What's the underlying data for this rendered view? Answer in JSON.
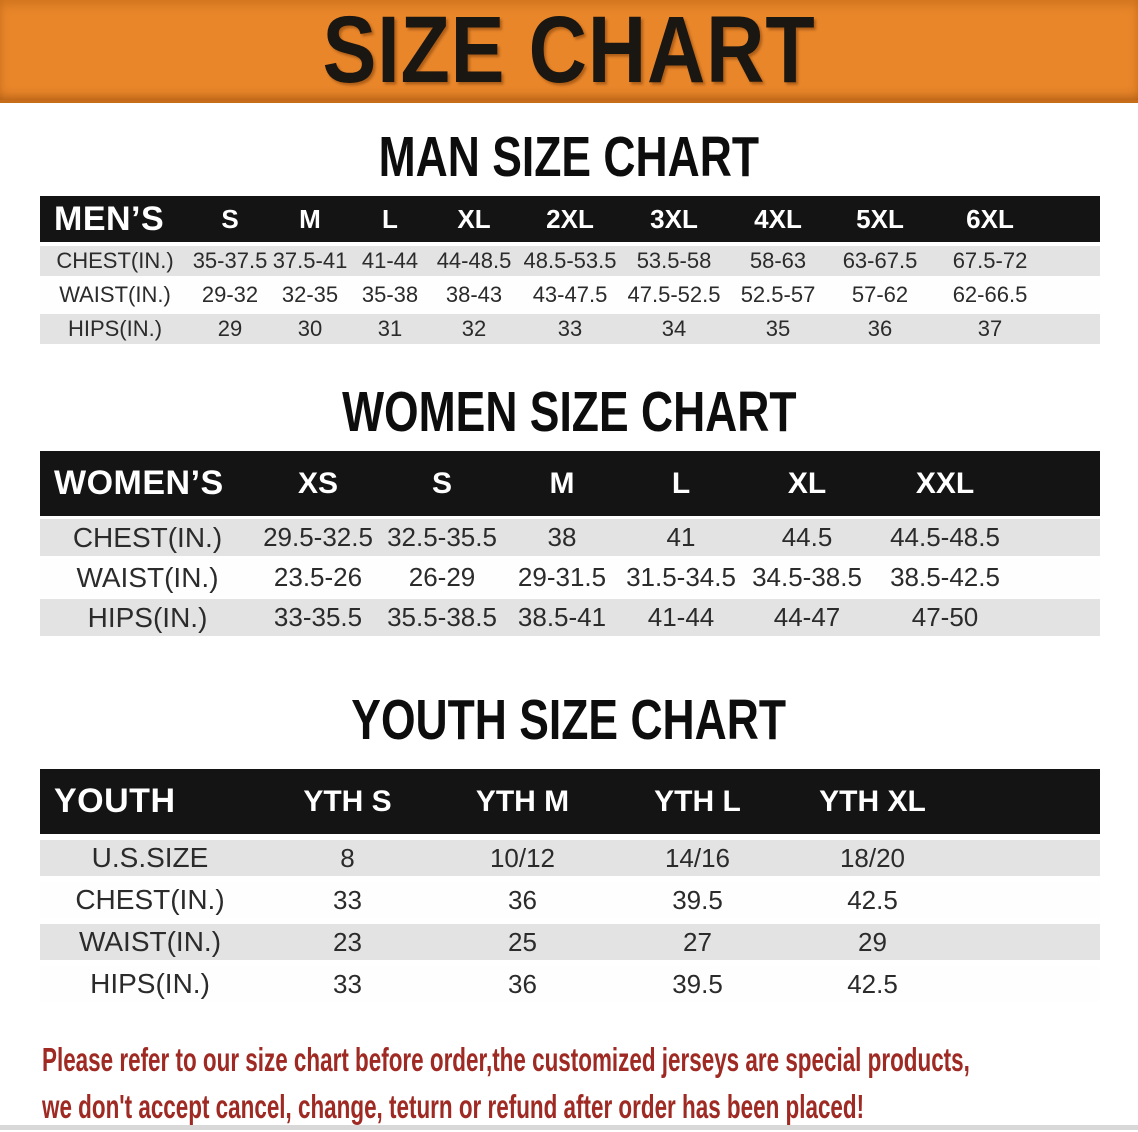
{
  "banner": {
    "title": "SIZE CHART",
    "bg_color": "#E9862A",
    "text_color": "#1A1611"
  },
  "men": {
    "heading": "MAN SIZE CHART",
    "header_label": "MEN’S",
    "sizes": [
      "S",
      "M",
      "L",
      "XL",
      "2XL",
      "3XL",
      "4XL",
      "5XL",
      "6XL"
    ],
    "rows": [
      {
        "label": "CHEST(IN.)",
        "values": [
          "35-37.5",
          "37.5-41",
          "41-44",
          "44-48.5",
          "48.5-53.5",
          "53.5-58",
          "58-63",
          "63-67.5",
          "67.5-72"
        ]
      },
      {
        "label": "WAIST(IN.)",
        "values": [
          "29-32",
          "32-35",
          "35-38",
          "38-43",
          "43-47.5",
          "47.5-52.5",
          "52.5-57",
          "57-62",
          "62-66.5"
        ]
      },
      {
        "label": "HIPS(IN.)",
        "values": [
          "29",
          "30",
          "31",
          "32",
          "33",
          "34",
          "35",
          "36",
          "37"
        ]
      }
    ]
  },
  "women": {
    "heading": "WOMEN SIZE CHART",
    "header_label": "WOMEN’S",
    "sizes": [
      "XS",
      "S",
      "M",
      "L",
      "XL",
      "XXL"
    ],
    "rows": [
      {
        "label": "CHEST(IN.)",
        "values": [
          "29.5-32.5",
          "32.5-35.5",
          "38",
          "41",
          "44.5",
          "44.5-48.5"
        ]
      },
      {
        "label": "WAIST(IN.)",
        "values": [
          "23.5-26",
          "26-29",
          "29-31.5",
          "31.5-34.5",
          "34.5-38.5",
          "38.5-42.5"
        ]
      },
      {
        "label": "HIPS(IN.)",
        "values": [
          "33-35.5",
          "35.5-38.5",
          "38.5-41",
          "41-44",
          "44-47",
          "47-50"
        ]
      }
    ]
  },
  "youth": {
    "heading": "YOUTH SIZE CHART",
    "header_label": "YOUTH",
    "sizes": [
      "YTH S",
      "YTH M",
      "YTH L",
      "YTH XL"
    ],
    "rows": [
      {
        "label": "U.S.SIZE",
        "values": [
          "8",
          "10/12",
          "14/16",
          "18/20"
        ]
      },
      {
        "label": "CHEST(IN.)",
        "values": [
          "33",
          "36",
          "39.5",
          "42.5"
        ]
      },
      {
        "label": "WAIST(IN.)",
        "values": [
          "23",
          "25",
          "27",
          "29"
        ]
      },
      {
        "label": "HIPS(IN.)",
        "values": [
          "33",
          "36",
          "39.5",
          "42.5"
        ]
      }
    ]
  },
  "footer": {
    "line1": "Please refer to our size chart before order,the customized jerseys are special products,",
    "line2": "we don't accept cancel, change, teturn or refund after order has been placed!",
    "text_color": "#9E2A23"
  },
  "colors": {
    "table_header_bg": "#141414",
    "row_gray": "#E3E3E3",
    "row_white": "#FEFEFE"
  }
}
